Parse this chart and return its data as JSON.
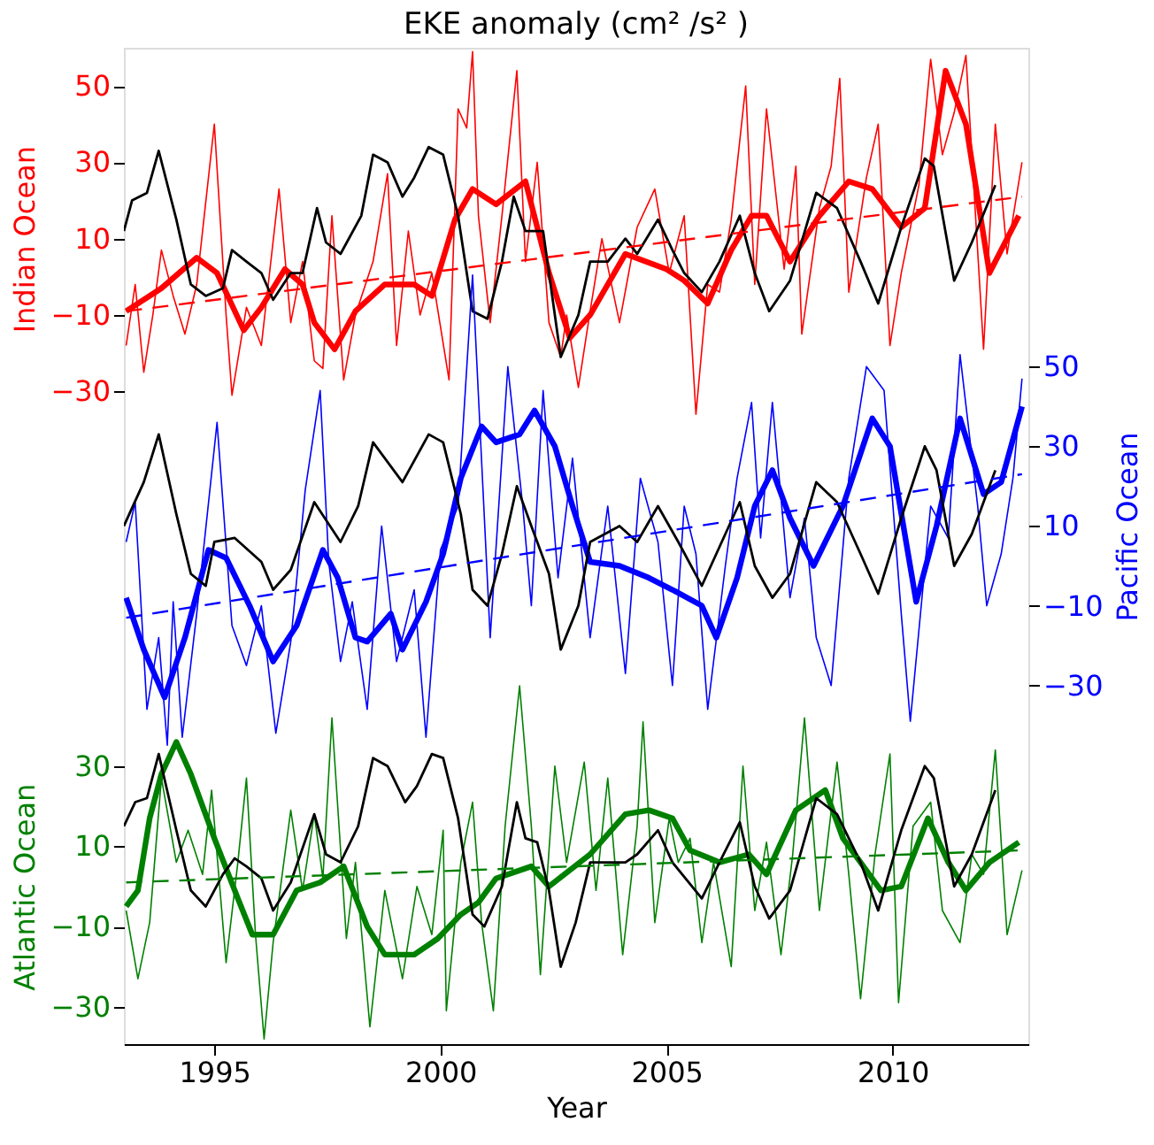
{
  "chart_data": {
    "type": "line",
    "title": "EKE anomaly (cm² /s² )",
    "xlabel": "Year",
    "ylabel": "Indian Ocean",
    "y2label": "Pacific Ocean",
    "y3label": "Atlantic Ocean",
    "xlim": [
      1993,
      2013
    ],
    "xticks": [
      1995,
      2000,
      2005,
      2010
    ],
    "ylim": [
      -201,
      60
    ],
    "yticks": [
      -30,
      -10,
      10,
      30,
      50
    ],
    "y2lim": [
      -120,
      130
    ],
    "y2ticks": [
      -30,
      -10,
      10,
      30,
      50
    ],
    "y3lim": [
      -39.3,
      209
    ],
    "y3ticks": [
      -30,
      -10,
      10,
      30
    ],
    "grid": false,
    "marker": "none",
    "series": [
      {
        "axis": "y",
        "color": "#ff0000",
        "x": [
          1993.05,
          1993.25,
          1993.44,
          1993.64,
          1993.83,
          1994.09,
          1994.35,
          1994.61,
          1995.0,
          1995.26,
          1995.39,
          1995.71,
          1996.04,
          1996.43,
          1996.69,
          1996.95,
          1997.21,
          1997.4,
          1997.6,
          1997.86,
          1998.12,
          1998.51,
          1998.83,
          1999.03,
          1999.29,
          1999.55,
          1999.81,
          2000.19,
          2000.39,
          2000.58,
          2000.71,
          2000.84,
          2001.1,
          2001.36,
          2001.69,
          2001.88,
          2002.14,
          2002.4,
          2002.66,
          2002.79,
          2003.05,
          2003.31,
          2003.57,
          2003.96,
          2004.35,
          2004.74,
          2005.06,
          2005.39,
          2005.65,
          2005.91,
          2006.17,
          2006.43,
          2006.75,
          2006.95,
          2007.21,
          2007.6,
          2007.86,
          2007.99,
          2008.38,
          2008.64,
          2008.83,
          2009.03,
          2009.42,
          2009.68,
          2009.94,
          2010.19,
          2010.58,
          2010.84,
          2011.1,
          2011.36,
          2011.62,
          2012.01,
          2012.27,
          2012.53,
          2012.86
        ],
        "values": [
          -18,
          -2,
          -25,
          -10,
          7,
          -5,
          -15,
          -2,
          40,
          -10,
          -31,
          -8,
          -18,
          23,
          -12,
          4,
          -22,
          -24,
          16,
          -27,
          -10,
          4,
          27,
          -18,
          12,
          -10,
          1,
          -27,
          44,
          39,
          59,
          16,
          -12,
          16,
          54,
          4,
          30,
          -12,
          -21,
          -10,
          -29,
          -9,
          10,
          -12,
          13,
          23,
          1,
          16,
          -36,
          -2,
          -4,
          15,
          50,
          -2,
          44,
          2,
          29,
          -15,
          18,
          29,
          52,
          -4,
          26,
          40,
          -18,
          1,
          24,
          57,
          32,
          43,
          58,
          -19,
          40,
          6,
          30
        ]
      },
      {
        "axis": "y",
        "color": "#ff0000",
        "x": [
          1993.05,
          1993.83,
          1994.61,
          1995.06,
          1995.65,
          1996.04,
          1996.56,
          1996.95,
          1997.21,
          1997.66,
          1998.12,
          1998.77,
          1999.42,
          1999.81,
          2000.32,
          2000.71,
          2001.23,
          2001.88,
          2002.4,
          2002.86,
          2003.31,
          2004.09,
          2005.0,
          2005.39,
          2005.91,
          2006.43,
          2006.88,
          2007.21,
          2007.73,
          2008.38,
          2009.03,
          2009.55,
          2010.19,
          2010.71,
          2011.17,
          2011.62,
          2012.14,
          2012.79
        ],
        "values": [
          -9,
          -3,
          5,
          1,
          -14,
          -8,
          2,
          -2,
          -12,
          -19,
          -9,
          -2,
          -2,
          -5,
          15,
          23,
          19,
          25,
          1,
          -16,
          -10,
          6,
          2,
          -1,
          -7,
          7,
          16,
          16,
          4,
          16,
          25,
          23,
          13,
          18,
          54,
          40,
          1,
          16
        ]
      },
      {
        "axis": "y",
        "color": "#000000",
        "x": [
          1993.0,
          1993.18,
          1993.51,
          1993.77,
          1994.16,
          1994.48,
          1994.81,
          1995.19,
          1995.39,
          1995.71,
          1996.04,
          1996.3,
          1996.69,
          1996.95,
          1997.27,
          1997.47,
          1997.79,
          1998.25,
          1998.51,
          1998.83,
          1999.16,
          1999.42,
          1999.74,
          2000.06,
          2000.39,
          2000.71,
          2001.04,
          2001.36,
          2001.62,
          2001.88,
          2002.27,
          2002.66,
          2003.05,
          2003.31,
          2003.7,
          2004.09,
          2004.35,
          2004.81,
          2005.13,
          2005.39,
          2005.78,
          2006.17,
          2006.62,
          2006.95,
          2007.27,
          2007.73,
          2008.31,
          2008.77,
          2009.29,
          2009.68,
          2010.19,
          2010.71,
          2010.91,
          2011.36,
          2011.75,
          2012.27
        ],
        "values": [
          12,
          20,
          22,
          33,
          15,
          -2,
          -5,
          -3,
          7,
          4,
          1,
          -6,
          1,
          1,
          18,
          9,
          6,
          16,
          32,
          30,
          21,
          26,
          34,
          32,
          16,
          -9,
          -11,
          4,
          21,
          12,
          12,
          -21,
          -10,
          4,
          4,
          10,
          6,
          15,
          7,
          1,
          -4,
          4,
          16,
          1,
          -9,
          -1,
          22,
          18,
          4,
          -7,
          13,
          31,
          29,
          -1,
          9,
          24
        ]
      },
      {
        "axis": "y",
        "color": "#ff0000",
        "line_style": "dashed",
        "x": [
          1993.05,
          2012.86
        ],
        "values": [
          -9,
          21
        ]
      },
      {
        "axis": "y2",
        "color": "#0000ff",
        "x": [
          1993.05,
          1993.25,
          1993.51,
          1993.77,
          1993.96,
          1994.09,
          1994.29,
          1994.61,
          1995.06,
          1995.39,
          1995.71,
          1996.04,
          1996.36,
          1996.69,
          1997.01,
          1997.34,
          1997.53,
          1997.79,
          1998.05,
          1998.38,
          1998.7,
          1999.03,
          1999.42,
          1999.68,
          2000.0,
          2000.39,
          2000.71,
          2001.1,
          2001.49,
          2001.82,
          2002.01,
          2002.27,
          2002.6,
          2002.92,
          2003.31,
          2003.7,
          2004.09,
          2004.42,
          2004.81,
          2005.13,
          2005.39,
          2005.65,
          2005.91,
          2006.3,
          2006.56,
          2006.88,
          2007.08,
          2007.34,
          2007.73,
          2008.05,
          2008.31,
          2008.64,
          2009.03,
          2009.42,
          2009.81,
          2010.19,
          2010.39,
          2010.84,
          2011.23,
          2011.49,
          2011.88,
          2012.08,
          2012.4,
          2012.66,
          2012.86
        ],
        "values": [
          6,
          16,
          -36,
          -18,
          -45,
          -9,
          -43,
          -12,
          36,
          -15,
          -25,
          -10,
          -42,
          -19,
          19,
          44,
          1,
          -24,
          -9,
          -36,
          10,
          -24,
          -6,
          -43,
          4,
          15,
          73,
          -18,
          50,
          15,
          -10,
          44,
          -3,
          27,
          -18,
          15,
          -27,
          22,
          6,
          -30,
          15,
          3,
          -36,
          0,
          22,
          41,
          7,
          41,
          -8,
          12,
          -18,
          -30,
          22,
          50,
          44,
          -12,
          -39,
          15,
          7,
          53,
          15,
          -10,
          3,
          22,
          47
        ]
      },
      {
        "axis": "y2",
        "color": "#0000ff",
        "x": [
          1993.05,
          1993.44,
          1993.9,
          1994.35,
          1994.87,
          1995.26,
          1995.78,
          1996.3,
          1996.82,
          1997.4,
          1997.73,
          1998.12,
          1998.38,
          1998.9,
          1999.16,
          1999.68,
          2000.06,
          2000.45,
          2000.91,
          2001.23,
          2001.75,
          2002.08,
          2002.53,
          2002.92,
          2003.31,
          2003.96,
          2004.61,
          2005.13,
          2005.78,
          2006.1,
          2006.56,
          2006.95,
          2007.34,
          2007.73,
          2008.25,
          2008.9,
          2009.55,
          2009.94,
          2010.52,
          2010.97,
          2011.49,
          2012.01,
          2012.4,
          2012.86
        ],
        "values": [
          -8,
          -21,
          -33,
          -18,
          4,
          2,
          -10,
          -24,
          -15,
          4,
          -3,
          -18,
          -19,
          -12,
          -21,
          -9,
          3,
          22,
          35,
          31,
          33,
          39,
          30,
          15,
          1,
          0,
          -3,
          -6,
          -10,
          -18,
          -3,
          15,
          24,
          12,
          0,
          15,
          37,
          30,
          -9,
          10,
          37,
          18,
          21,
          40
        ]
      },
      {
        "axis": "y2",
        "color": "#000000",
        "x": [
          1993.0,
          1993.44,
          1993.77,
          1994.16,
          1994.48,
          1994.81,
          1995.0,
          1995.45,
          1996.04,
          1996.3,
          1996.69,
          1997.21,
          1997.79,
          1998.18,
          1998.51,
          1999.16,
          1999.74,
          2000.06,
          2000.45,
          2000.71,
          2001.04,
          2001.36,
          2001.69,
          2002.01,
          2002.4,
          2002.66,
          2003.05,
          2003.31,
          2003.96,
          2004.35,
          2004.81,
          2005.26,
          2005.78,
          2006.62,
          2006.95,
          2007.34,
          2007.73,
          2008.31,
          2008.77,
          2009.29,
          2009.68,
          2010.19,
          2010.71,
          2010.97,
          2011.36,
          2011.75,
          2012.27
        ],
        "values": [
          10,
          21,
          33,
          13,
          -2,
          -5,
          6,
          7,
          1,
          -6,
          -1,
          16,
          6,
          15,
          31,
          21,
          33,
          31,
          13,
          -6,
          -10,
          3,
          20,
          10,
          -2,
          -21,
          -10,
          6,
          10,
          6,
          15,
          6,
          -5,
          16,
          0,
          -8,
          -2,
          21,
          16,
          3,
          -7,
          12,
          30,
          24,
          0,
          8,
          24
        ]
      },
      {
        "axis": "y2",
        "color": "#0000ff",
        "line_style": "dashed",
        "x": [
          1993.05,
          2012.86
        ],
        "values": [
          -13,
          23
        ]
      },
      {
        "axis": "y3",
        "color": "#008000",
        "x": [
          1993.05,
          1993.31,
          1993.57,
          1993.83,
          1994.16,
          1994.42,
          1994.74,
          1994.94,
          1995.26,
          1995.52,
          1995.71,
          1995.91,
          1996.1,
          1996.3,
          1996.69,
          1996.95,
          1997.21,
          1997.4,
          1997.6,
          1997.92,
          1998.12,
          1998.44,
          1998.77,
          1999.16,
          1999.48,
          1999.81,
          2000.06,
          2000.13,
          2000.45,
          2000.71,
          2000.91,
          2001.17,
          2001.43,
          2001.75,
          2002.01,
          2002.21,
          2002.53,
          2002.79,
          2003.18,
          2003.44,
          2003.7,
          2004.03,
          2004.35,
          2004.48,
          2004.74,
          2005.06,
          2005.26,
          2005.52,
          2005.78,
          2006.04,
          2006.43,
          2006.69,
          2006.95,
          2007.21,
          2007.53,
          2007.79,
          2008.05,
          2008.38,
          2008.77,
          2009.03,
          2009.29,
          2009.61,
          2009.94,
          2010.13,
          2010.45,
          2010.84,
          2011.1,
          2011.49,
          2011.75,
          2012.01,
          2012.27,
          2012.53,
          2012.86
        ],
        "values": [
          -6,
          -23,
          -9,
          27,
          6,
          14,
          3,
          24,
          -19,
          6,
          27,
          -12,
          -38,
          -14,
          19,
          -1,
          18,
          2,
          42,
          -13,
          6,
          -35,
          -1,
          -23,
          0,
          -12,
          14,
          -31,
          6,
          21,
          -9,
          -31,
          15,
          50,
          15,
          -22,
          30,
          6,
          31,
          -1,
          27,
          -17,
          15,
          41,
          -9,
          17,
          6,
          12,
          -14,
          6,
          -20,
          30,
          -6,
          11,
          -17,
          8,
          42,
          -6,
          31,
          3,
          -28,
          8,
          33,
          -29,
          15,
          21,
          -6,
          -14,
          8,
          3,
          34,
          -12,
          4
        ]
      },
      {
        "axis": "y3",
        "color": "#008000",
        "x": [
          1993.05,
          1993.31,
          1993.57,
          1993.83,
          1994.16,
          1994.48,
          1995.0,
          1995.52,
          1995.84,
          1996.3,
          1996.82,
          1997.34,
          1997.86,
          1998.38,
          1998.77,
          1999.42,
          1999.94,
          2000.45,
          2000.84,
          2001.23,
          2002.01,
          2002.4,
          2003.31,
          2004.09,
          2004.61,
          2005.13,
          2005.52,
          2006.17,
          2006.82,
          2007.21,
          2007.86,
          2008.51,
          2008.9,
          2009.29,
          2009.74,
          2010.19,
          2010.78,
          2011.23,
          2011.62,
          2012.14,
          2012.79
        ],
        "values": [
          -5,
          -1,
          17,
          28,
          36,
          28,
          12,
          -3,
          -12,
          -12,
          -1,
          1,
          5,
          -10,
          -17,
          -17,
          -13,
          -7,
          -4,
          2,
          5,
          0,
          8,
          18,
          19,
          17,
          9,
          6,
          8,
          3,
          19,
          24,
          12,
          6,
          -1,
          0,
          17,
          6,
          -1,
          6,
          11
        ]
      },
      {
        "axis": "y3",
        "color": "#000000",
        "x": [
          1993.0,
          1993.25,
          1993.51,
          1993.77,
          1994.16,
          1994.48,
          1994.81,
          1995.19,
          1995.45,
          1995.71,
          1996.04,
          1996.3,
          1996.69,
          1997.21,
          1997.47,
          1997.79,
          1998.18,
          1998.51,
          1998.83,
          1999.22,
          1999.48,
          1999.81,
          2000.06,
          2000.39,
          2000.71,
          2000.97,
          2001.36,
          2001.69,
          2001.88,
          2002.14,
          2002.4,
          2002.66,
          2002.99,
          2003.31,
          2003.64,
          2004.09,
          2004.35,
          2004.81,
          2005.13,
          2005.78,
          2006.17,
          2006.62,
          2006.95,
          2007.27,
          2007.73,
          2008.31,
          2008.77,
          2009.29,
          2009.68,
          2010.19,
          2010.71,
          2010.91,
          2011.36,
          2011.75,
          2012.27
        ],
        "values": [
          15,
          21,
          22,
          33,
          14,
          -1,
          -5,
          3,
          7,
          5,
          2,
          -6,
          1,
          18,
          8,
          6,
          15,
          32,
          30,
          21,
          25,
          33,
          32,
          17,
          -7,
          -10,
          0,
          21,
          12,
          11,
          -1,
          -20,
          -9,
          6,
          6,
          6,
          8,
          14,
          6,
          -3,
          6,
          16,
          0,
          -8,
          -1,
          22,
          18,
          6,
          -6,
          14,
          30,
          27,
          0,
          8,
          24
        ]
      },
      {
        "axis": "y3",
        "color": "#008000",
        "line_style": "dashed",
        "x": [
          1993.05,
          2012.86
        ],
        "values": [
          1,
          9
        ]
      }
    ]
  }
}
